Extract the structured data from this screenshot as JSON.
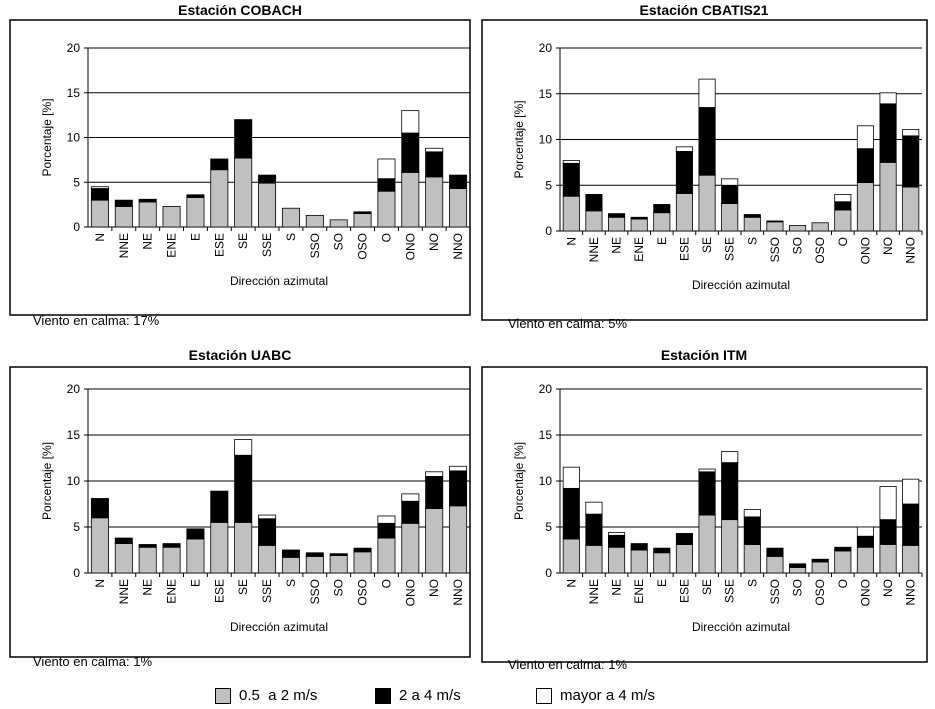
{
  "chart_data": [
    {
      "type": "bar",
      "stacked": true,
      "title": "Estación COBACH",
      "xlabel": "Dirección azimutal",
      "ylabel": "Porcentaje [%]",
      "ylim": [
        0,
        20
      ],
      "yticks": [
        0,
        5,
        10,
        15,
        20
      ],
      "grid": true,
      "categories": [
        "N",
        "NNE",
        "NE",
        "ENE",
        "E",
        "ESE",
        "SE",
        "SSE",
        "S",
        "SSO",
        "SO",
        "OSO",
        "O",
        "ONO",
        "NO",
        "NNO"
      ],
      "series": [
        {
          "name": "0.5  a 2 m/s",
          "values": [
            3.0,
            2.3,
            2.8,
            2.3,
            3.3,
            6.4,
            7.7,
            4.9,
            2.1,
            1.3,
            0.8,
            1.5,
            4.0,
            6.1,
            5.6,
            4.3
          ]
        },
        {
          "name": "2 a 4 m/s",
          "values": [
            1.3,
            0.7,
            0.3,
            0.0,
            0.3,
            1.2,
            4.3,
            0.9,
            0.0,
            0.0,
            0.0,
            0.2,
            1.4,
            4.4,
            2.8,
            1.5
          ]
        },
        {
          "name": "mayor a 4 m/s",
          "values": [
            0.2,
            0.0,
            0.0,
            0.0,
            0.0,
            0.0,
            0.0,
            0.0,
            0.0,
            0.0,
            0.0,
            0.0,
            2.2,
            2.5,
            0.4,
            0.0
          ]
        }
      ],
      "note": "Viento en calma: 17%"
    },
    {
      "type": "bar",
      "stacked": true,
      "title": "Estación CBATIS21",
      "xlabel": "Dirección azimutal",
      "ylabel": "Porcentaje [%]",
      "ylim": [
        0,
        20
      ],
      "yticks": [
        0,
        5,
        10,
        15,
        20
      ],
      "grid": true,
      "categories": [
        "N",
        "NNE",
        "NE",
        "ENE",
        "E",
        "ESE",
        "SE",
        "SSE",
        "S",
        "SSO",
        "SO",
        "OSO",
        "O",
        "ONO",
        "NO",
        "NNO"
      ],
      "series": [
        {
          "name": "0.5  a 2 m/s",
          "values": [
            3.8,
            2.2,
            1.5,
            1.3,
            2.0,
            4.1,
            6.1,
            3.0,
            1.5,
            1.0,
            0.6,
            0.9,
            2.3,
            5.3,
            7.5,
            4.8
          ]
        },
        {
          "name": "2 a 4 m/s",
          "values": [
            3.6,
            1.8,
            0.4,
            0.2,
            0.9,
            4.6,
            7.4,
            2.0,
            0.3,
            0.1,
            0.0,
            0.0,
            0.9,
            3.7,
            6.4,
            5.6
          ]
        },
        {
          "name": "mayor a 4 m/s",
          "values": [
            0.3,
            0.0,
            0.0,
            0.0,
            0.0,
            0.5,
            3.1,
            0.7,
            0.0,
            0.0,
            0.0,
            0.0,
            0.8,
            2.5,
            1.2,
            0.7
          ]
        }
      ],
      "note": "Viento en calma: 5%"
    },
    {
      "type": "bar",
      "stacked": true,
      "title": "Estación UABC",
      "xlabel": "Dirección azimutal",
      "ylabel": "Porcentaje [%]",
      "ylim": [
        0,
        20
      ],
      "yticks": [
        0,
        5,
        10,
        15,
        20
      ],
      "grid": true,
      "categories": [
        "N",
        "NNE",
        "NE",
        "ENE",
        "E",
        "ESE",
        "SE",
        "SSE",
        "S",
        "SSO",
        "SO",
        "OSO",
        "O",
        "ONO",
        "NO",
        "NNO"
      ],
      "series": [
        {
          "name": "0.5  a 2 m/s",
          "values": [
            6.0,
            3.2,
            2.8,
            2.8,
            3.7,
            5.5,
            5.5,
            3.0,
            1.7,
            1.8,
            1.9,
            2.3,
            3.8,
            5.4,
            7.0,
            7.3
          ]
        },
        {
          "name": "2 a 4 m/s",
          "values": [
            2.1,
            0.6,
            0.3,
            0.4,
            1.1,
            3.4,
            7.3,
            2.9,
            0.8,
            0.4,
            0.2,
            0.4,
            1.6,
            2.4,
            3.5,
            3.8
          ]
        },
        {
          "name": "mayor a 4 m/s",
          "values": [
            0.0,
            0.0,
            0.0,
            0.0,
            0.0,
            0.0,
            1.7,
            0.4,
            0.0,
            0.0,
            0.0,
            0.0,
            0.8,
            0.8,
            0.5,
            0.5
          ]
        }
      ],
      "note": "Viento en calma: 1%"
    },
    {
      "type": "bar",
      "stacked": true,
      "title": "Estación ITM",
      "xlabel": "Dirección azimutal",
      "ylabel": "Porcentaje [%]",
      "ylim": [
        0,
        20
      ],
      "yticks": [
        0,
        5,
        10,
        15,
        20
      ],
      "grid": true,
      "categories": [
        "N",
        "NNE",
        "NE",
        "ENE",
        "E",
        "ESE",
        "SE",
        "SSE",
        "S",
        "SSO",
        "SO",
        "OSO",
        "O",
        "ONO",
        "NO",
        "NNO"
      ],
      "series": [
        {
          "name": "0.5  a 2 m/s",
          "values": [
            3.7,
            3.0,
            2.8,
            2.5,
            2.2,
            3.1,
            6.3,
            5.8,
            3.1,
            1.8,
            0.6,
            1.2,
            2.4,
            2.8,
            3.1,
            3.0
          ]
        },
        {
          "name": "2 a 4 m/s",
          "values": [
            5.5,
            3.4,
            1.3,
            0.7,
            0.5,
            1.2,
            4.7,
            6.2,
            3.0,
            0.9,
            0.4,
            0.3,
            0.4,
            1.2,
            2.7,
            4.5
          ]
        },
        {
          "name": "mayor a 4 m/s",
          "values": [
            2.3,
            1.3,
            0.3,
            0.0,
            0.0,
            0.0,
            0.3,
            1.2,
            0.8,
            0.0,
            0.0,
            0.0,
            0.0,
            1.0,
            3.6,
            2.7
          ]
        }
      ],
      "note": "Viento en calma: 1%"
    }
  ],
  "colors": {
    "low": "#c0c0c0",
    "mid": "#000000",
    "high": "#ffffff",
    "gridline": "#000000",
    "frame": "#000000"
  },
  "legend": [
    {
      "label": "0.5  a 2 m/s",
      "color": "#c0c0c0"
    },
    {
      "label": "2 a 4 m/s",
      "color": "#000000"
    },
    {
      "label": "mayor a 4 m/s",
      "color": "#ffffff"
    }
  ]
}
